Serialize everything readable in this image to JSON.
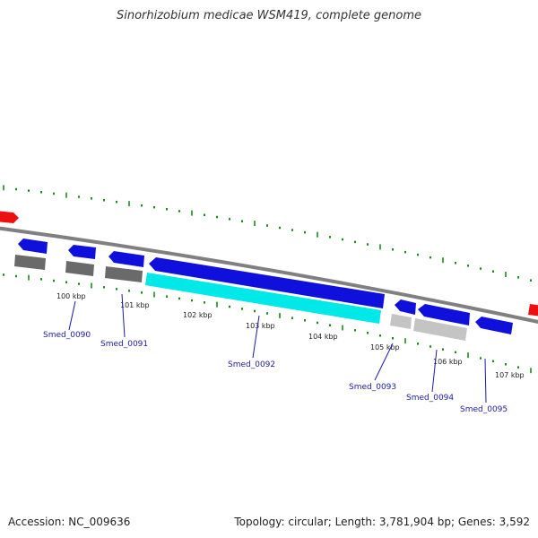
{
  "title": "Sinorhizobium medicae WSM419, complete genome",
  "colors": {
    "backbone": "#808080",
    "tick": "#1a8a1a",
    "gene_blue": "#1010dd",
    "gene_red": "#ee1010",
    "gene_cyan": "#00e8e8",
    "gene_dark_gray": "#6a6a6a",
    "gene_light_gray": "#c4c4c4",
    "label_link": "#1a1aaa"
  },
  "scale_labels": [
    "100 kbp",
    "101 kbp",
    "102 kbp",
    "103 kbp",
    "104 kbp",
    "105 kbp",
    "106 kbp",
    "107 kbp"
  ],
  "genes": [
    {
      "id": "Smed_0090",
      "label": "Smed_0090"
    },
    {
      "id": "Smed_0091",
      "label": "Smed_0091"
    },
    {
      "id": "Smed_0092",
      "label": "Smed_0092"
    },
    {
      "id": "Smed_0093",
      "label": "Smed_0093"
    },
    {
      "id": "Smed_0094",
      "label": "Smed_0094"
    },
    {
      "id": "Smed_0095",
      "label": "Smed_0095"
    }
  ],
  "footer": {
    "accession": "Accession: NC_009636",
    "summary": "Topology: circular; Length: 3,781,904 bp; Genes: 3,592"
  }
}
